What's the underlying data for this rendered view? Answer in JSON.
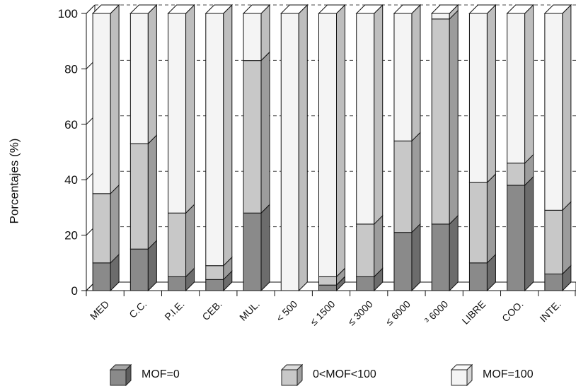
{
  "chart_data": {
    "type": "bar",
    "stacked": true,
    "three_d": true,
    "categories": [
      "MED",
      "C.C.",
      "P.I.E.",
      "CEB.",
      "MUL.",
      "< 500",
      "≤ 1500",
      "≤ 3000",
      "≤ 6000",
      "³ 6000",
      "LIBRE",
      "COO.",
      "INTE."
    ],
    "series": [
      {
        "name": "MOF=0",
        "values": [
          10,
          15,
          5,
          4,
          28,
          0,
          2,
          5,
          21,
          24,
          10,
          38,
          6
        ],
        "color": "#8a8a8a"
      },
      {
        "name": "0<MOF<100",
        "values": [
          25,
          38,
          23,
          5,
          55,
          0,
          3,
          19,
          33,
          74,
          29,
          8,
          23
        ],
        "color": "#c8c8c8"
      },
      {
        "name": "MOF=100",
        "values": [
          65,
          47,
          72,
          91,
          17,
          100,
          95,
          76,
          46,
          2,
          61,
          54,
          71
        ],
        "color": "#f4f4f4"
      }
    ],
    "title": "",
    "xlabel": "",
    "ylabel": "Porcentajes (%)",
    "ylim": [
      0,
      100
    ],
    "yticks": [
      "0",
      "20",
      "40",
      "60",
      "80",
      "100"
    ],
    "grid": "dashed horizontal",
    "legend_position": "bottom"
  }
}
